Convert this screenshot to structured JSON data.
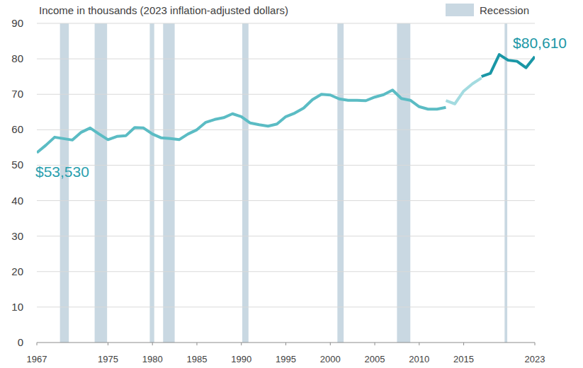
{
  "chart_data": {
    "type": "line",
    "ylabel": "Income in thousands (2023 inflation-adjusted dollars)",
    "xlim": [
      1967,
      2023
    ],
    "xticks": [
      1967,
      1975,
      1980,
      1985,
      1990,
      1995,
      2000,
      2005,
      2010,
      2015,
      2023
    ],
    "ylim": [
      0,
      90
    ],
    "yticks": [
      0,
      10,
      20,
      30,
      40,
      50,
      60,
      70,
      80,
      90
    ],
    "grid": true,
    "legend": "top-right",
    "recessions": {
      "name": "Recession",
      "color": "#c9d8e2",
      "periods": [
        [
          1969.6,
          1970.6
        ],
        [
          1973.5,
          1974.9
        ],
        [
          1979.7,
          1980.2
        ],
        [
          1981.2,
          1982.5
        ],
        [
          1990.1,
          1990.8
        ],
        [
          2000.8,
          2001.5
        ],
        [
          2007.5,
          2009.0
        ],
        [
          2019.6,
          2019.9
        ]
      ]
    },
    "series": [
      {
        "color": "#5bbcc4",
        "x": [
          1967,
          1968,
          1969,
          1970,
          1971,
          1972,
          1973,
          1974,
          1975,
          1976,
          1977,
          1978,
          1979,
          1980,
          1981,
          1982,
          1983,
          1984,
          1985,
          1986,
          1987,
          1988,
          1989,
          1990,
          1991,
          1992,
          1993,
          1994,
          1995,
          1996,
          1997,
          1998,
          1999,
          2000,
          2001,
          2002,
          2003,
          2004,
          2005,
          2006,
          2007,
          2008,
          2009,
          2010,
          2011,
          2012,
          2013
        ],
        "values": [
          53.53,
          55.6,
          57.9,
          57.5,
          57.1,
          59.3,
          60.5,
          58.8,
          57.2,
          58.1,
          58.3,
          60.6,
          60.5,
          58.8,
          57.7,
          57.5,
          57.2,
          58.8,
          60.0,
          62.1,
          62.9,
          63.4,
          64.5,
          63.7,
          61.9,
          61.4,
          61.0,
          61.6,
          63.7,
          64.7,
          66.1,
          68.5,
          70.0,
          69.8,
          68.7,
          68.3,
          68.3,
          68.2,
          69.2,
          69.9,
          71.2,
          68.8,
          68.3,
          66.5,
          65.8,
          65.8,
          66.3
        ]
      },
      {
        "color": "#a3dbe0",
        "x": [
          2013,
          2014,
          2015,
          2016,
          2017
        ],
        "values": [
          68.2,
          67.3,
          70.9,
          73.0,
          74.6
        ]
      },
      {
        "color": "#1a97a6",
        "x": [
          2017,
          2018,
          2019,
          2020,
          2021,
          2022,
          2023
        ],
        "values": [
          75.0,
          75.9,
          81.2,
          79.6,
          79.3,
          77.5,
          80.61
        ]
      }
    ],
    "annotations": [
      {
        "text": "$53,530",
        "x": 1967,
        "y": 53.53,
        "color": "#2aa0ae"
      },
      {
        "text": "$80,610",
        "x": 2023,
        "y": 80.61,
        "color": "#1a97a6"
      }
    ]
  }
}
